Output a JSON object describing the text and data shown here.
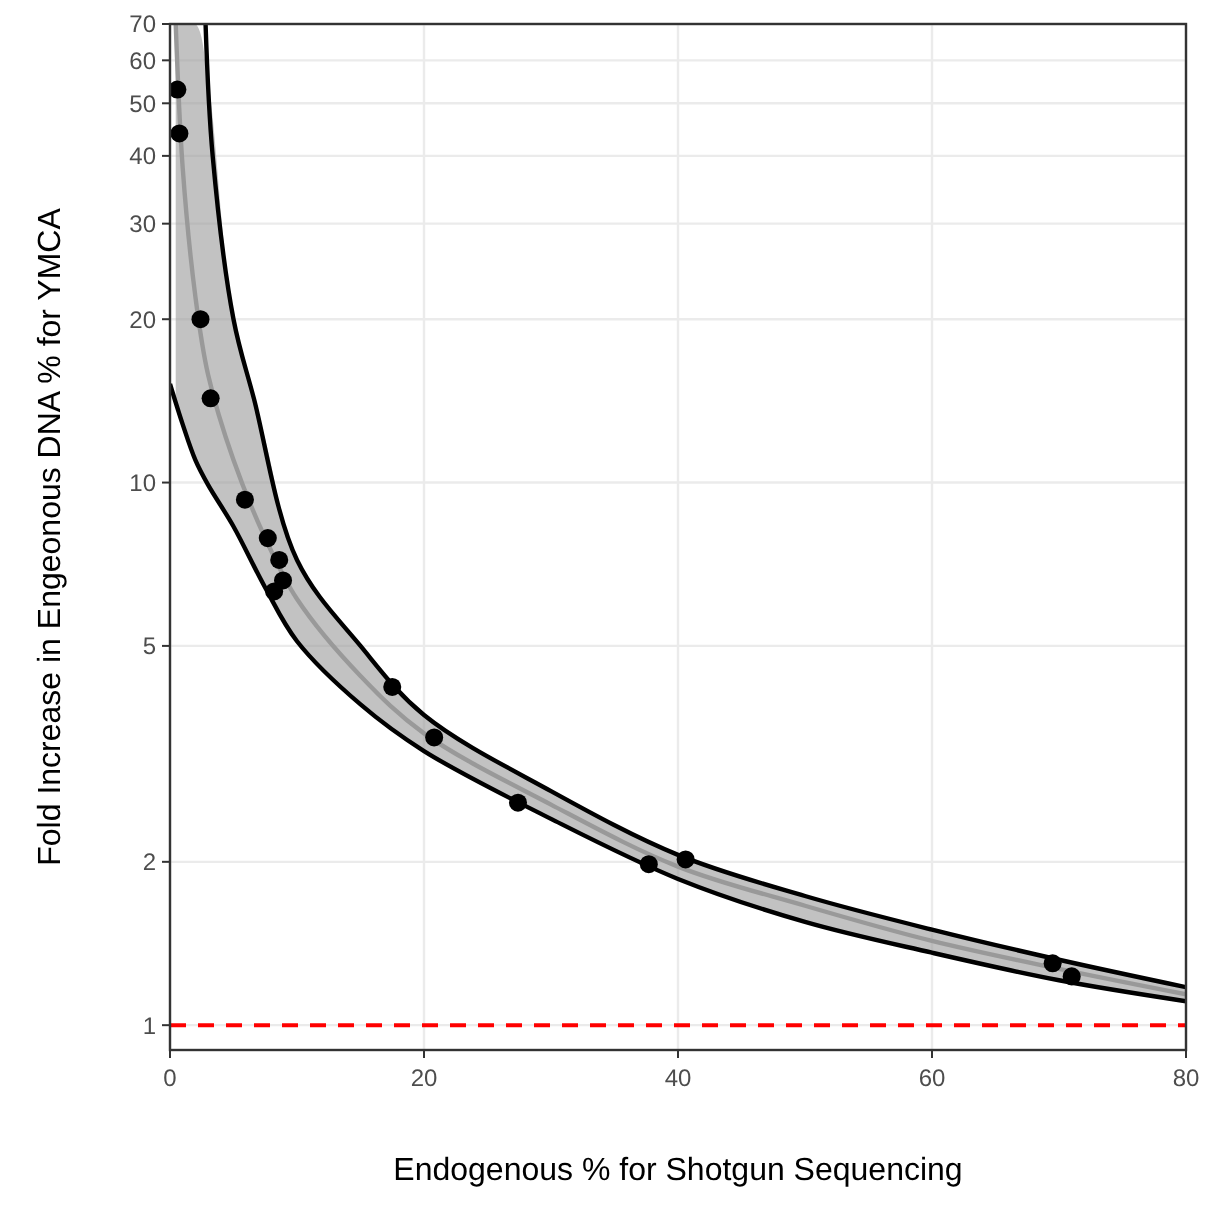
{
  "chart_data": {
    "type": "scatter",
    "xlabel": "Endogenous % for Shotgun Sequencing",
    "ylabel": "Fold Increase in Engeonous DNA % for YMCA",
    "log": "y",
    "grid": true,
    "xlim": [
      0,
      80
    ],
    "xticks": [
      0,
      20,
      40,
      60,
      80
    ],
    "ylim": [
      0.9,
      70
    ],
    "yticks": [
      1,
      2,
      5,
      10,
      20,
      30,
      40,
      50,
      60,
      70
    ],
    "series": [
      {
        "type": "line",
        "color": "#999999",
        "x": [
          0.45,
          1,
          2,
          3,
          5,
          7.5,
          10,
          15,
          20,
          30,
          40,
          50,
          60,
          70,
          80
        ],
        "values": [
          70,
          38,
          22,
          15.8,
          11,
          7.9,
          6.1,
          4.4,
          3.45,
          2.55,
          1.96,
          1.66,
          1.43,
          1.27,
          1.14
        ],
        "lower": [
          14,
          12.8,
          11,
          9.9,
          8.3,
          6.4,
          5.1,
          3.9,
          3.2,
          2.4,
          1.86,
          1.55,
          1.36,
          1.21,
          1.107
        ],
        "upper": [
          70,
          70,
          70,
          55,
          20,
          12,
          7.2,
          5.0,
          3.73,
          2.7,
          2.06,
          1.73,
          1.5,
          1.32,
          1.175
        ]
      },
      {
        "type": "line",
        "color": "#000000",
        "x": [
          2.8,
          3.36,
          5,
          6.6,
          10,
          15,
          20,
          30,
          40,
          50,
          60,
          70,
          80
        ],
        "values": [
          70,
          40,
          20,
          14.3,
          7.2,
          5.0,
          3.73,
          2.7,
          2.06,
          1.73,
          1.5,
          1.32,
          1.175
        ]
      },
      {
        "type": "line",
        "color": "#000000",
        "x": [
          0,
          1,
          2,
          3,
          5,
          7.5,
          10,
          15,
          20,
          30,
          40,
          50,
          60,
          70,
          80
        ],
        "values": [
          15.2,
          12.8,
          11,
          9.9,
          8.3,
          6.4,
          5.1,
          3.9,
          3.2,
          2.4,
          1.86,
          1.55,
          1.36,
          1.21,
          1.107
        ]
      },
      {
        "marker": "circle",
        "color": "#000000",
        "x": [
          0.58,
          0.74,
          2.4,
          3.2,
          5.9,
          7.7,
          8.6,
          8.9,
          8.2,
          17.5,
          20.8,
          27.4,
          37.7,
          40.6,
          69.5,
          71.0
        ],
        "values": [
          53,
          44,
          20,
          14.3,
          9.3,
          7.9,
          7.2,
          6.6,
          6.3,
          4.2,
          3.39,
          2.57,
          1.98,
          2.02,
          1.3,
          1.23
        ]
      }
    ],
    "ref_lines": [
      {
        "axis": "y",
        "value": 1,
        "color": "#ff0000",
        "line_style": "dashed"
      }
    ]
  }
}
